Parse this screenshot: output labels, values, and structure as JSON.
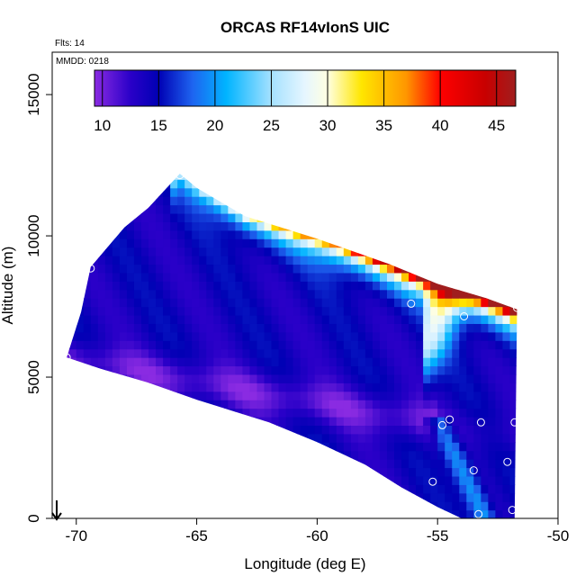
{
  "chart_data": {
    "type": "heatmap",
    "title": "ORCAS RF14vIonS UIC",
    "annotations": {
      "flights": "Flts: 14",
      "date": "MMDD: 0218"
    },
    "xlabel": "Longitude (deg E)",
    "ylabel": "Altitude (m)",
    "xlim": [
      -71,
      -50
    ],
    "ylim": [
      0,
      16500
    ],
    "xticks": [
      -70,
      -65,
      -60,
      -55,
      -50
    ],
    "yticks": [
      0,
      5000,
      10000,
      15000
    ],
    "colorbar": {
      "range": [
        9.3,
        46.7
      ],
      "ticks": [
        10,
        15,
        20,
        25,
        30,
        35,
        40,
        45
      ],
      "stops": [
        {
          "v": 9.3,
          "color": "#8a2be2"
        },
        {
          "v": 12.5,
          "color": "#2a00c8"
        },
        {
          "v": 15,
          "color": "#0000b4"
        },
        {
          "v": 18,
          "color": "#1e64f0"
        },
        {
          "v": 21,
          "color": "#00b4ff"
        },
        {
          "v": 25,
          "color": "#a5e1ff"
        },
        {
          "v": 28,
          "color": "#e6f6ff"
        },
        {
          "v": 30,
          "color": "#ffffe1"
        },
        {
          "v": 33,
          "color": "#ffe600"
        },
        {
          "v": 37,
          "color": "#ff9600"
        },
        {
          "v": 40,
          "color": "#ff0000"
        },
        {
          "v": 44,
          "color": "#c80000"
        },
        {
          "v": 46.7,
          "color": "#a01e1e"
        }
      ]
    },
    "envelope": {
      "top": [
        [
          -70.4,
          5700
        ],
        [
          -69.8,
          7300
        ],
        [
          -69.4,
          8900
        ],
        [
          -68,
          10300
        ],
        [
          -67,
          11000
        ],
        [
          -65.7,
          12200
        ],
        [
          -65,
          11700
        ],
        [
          -63,
          10700
        ],
        [
          -60,
          9900
        ],
        [
          -57,
          9000
        ],
        [
          -55,
          8300
        ],
        [
          -53,
          7800
        ],
        [
          -51.7,
          7400
        ]
      ],
      "bottom": [
        [
          -70.4,
          5700
        ],
        [
          -69,
          5300
        ],
        [
          -67,
          4800
        ],
        [
          -65,
          4200
        ],
        [
          -62,
          3400
        ],
        [
          -60,
          2700
        ],
        [
          -58,
          1900
        ],
        [
          -56.5,
          1100
        ],
        [
          -55,
          400
        ],
        [
          -54,
          0
        ],
        [
          -51.8,
          0
        ]
      ]
    },
    "flight_points": [
      {
        "lon": -70.4,
        "alt": 5700
      },
      {
        "lon": -69.4,
        "alt": 8850
      },
      {
        "lon": -65.7,
        "alt": 12150
      },
      {
        "lon": -56.1,
        "alt": 7600
      },
      {
        "lon": -53.9,
        "alt": 7150
      },
      {
        "lon": -51.7,
        "alt": 7450
      },
      {
        "lon": -54.5,
        "alt": 3500
      },
      {
        "lon": -54.8,
        "alt": 3300
      },
      {
        "lon": -53.2,
        "alt": 3400
      },
      {
        "lon": -51.8,
        "alt": 3400
      },
      {
        "lon": -55.2,
        "alt": 1300
      },
      {
        "lon": -53.5,
        "alt": 1700
      },
      {
        "lon": -52.1,
        "alt": 2000
      },
      {
        "lon": -54.9,
        "alt": 150
      },
      {
        "lon": -53.3,
        "alt": 150
      },
      {
        "lon": -51.9,
        "alt": 300
      }
    ]
  }
}
